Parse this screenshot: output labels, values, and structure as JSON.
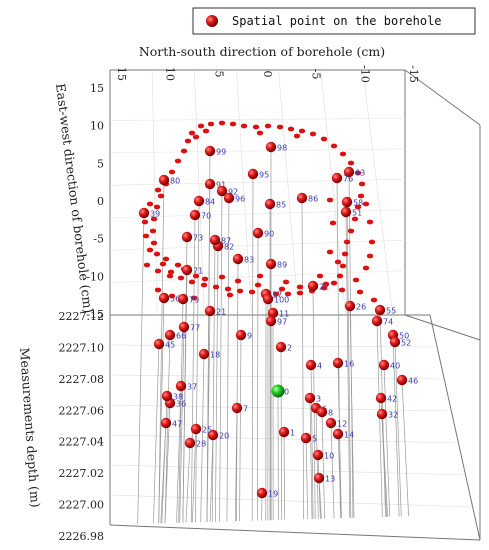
{
  "chart_data": {
    "type": "scatter",
    "legend": {
      "label": "Spatial point on the borehole",
      "placement": "top-right",
      "color": "#cc1111"
    },
    "axes": {
      "ns": {
        "title": "North-south direction of borehole (cm)",
        "ticks": [
          "15",
          "10",
          "5",
          "0",
          "-5",
          "-10",
          "-15"
        ],
        "range": [
          15,
          -15
        ]
      },
      "ew": {
        "title": "East-west direction of borehole (cm)",
        "ticks": [
          "15",
          "10",
          "5",
          "0",
          "-5",
          "-10",
          "-15"
        ],
        "range": [
          15,
          -15
        ]
      },
      "depth": {
        "title": "Measurements depth (m)",
        "ticks": [
          "2227.12",
          "2227.10",
          "2227.08",
          "2227.06",
          "2227.04",
          "2227.02",
          "2227.00",
          "2226.98"
        ],
        "range": [
          2226.98,
          2227.12
        ]
      }
    },
    "colors": {
      "point": "#cc1111",
      "highlight": "#22bb22",
      "label": "#3a3ab0",
      "guide": "#888888"
    },
    "labeled_points": [
      {
        "label": "0",
        "highlight": true
      },
      {
        "label": "1"
      },
      {
        "label": "2"
      },
      {
        "label": "3"
      },
      {
        "label": "4"
      },
      {
        "label": "5"
      },
      {
        "label": "6"
      },
      {
        "label": "7"
      },
      {
        "label": "8"
      },
      {
        "label": "9"
      },
      {
        "label": "10"
      },
      {
        "label": "11"
      },
      {
        "label": "12"
      },
      {
        "label": "13"
      },
      {
        "label": "14"
      },
      {
        "label": "16"
      },
      {
        "label": "17"
      },
      {
        "label": "18"
      },
      {
        "label": "19"
      },
      {
        "label": "20"
      },
      {
        "label": "21"
      },
      {
        "label": "22"
      },
      {
        "label": "25"
      },
      {
        "label": "26"
      },
      {
        "label": "28"
      },
      {
        "label": "32"
      },
      {
        "label": "36"
      },
      {
        "label": "37"
      },
      {
        "label": "38"
      },
      {
        "label": "39"
      },
      {
        "label": "40"
      },
      {
        "label": "42"
      },
      {
        "label": "45"
      },
      {
        "label": "46"
      },
      {
        "label": "47"
      },
      {
        "label": "50"
      },
      {
        "label": "51"
      },
      {
        "label": "52"
      },
      {
        "label": "55"
      },
      {
        "label": "56"
      },
      {
        "label": "58"
      },
      {
        "label": "63"
      },
      {
        "label": "66"
      },
      {
        "label": "70"
      },
      {
        "label": "71"
      },
      {
        "label": "73"
      },
      {
        "label": "74"
      },
      {
        "label": "76"
      },
      {
        "label": "77"
      },
      {
        "label": "79"
      },
      {
        "label": "80"
      },
      {
        "label": "82"
      },
      {
        "label": "83"
      },
      {
        "label": "84"
      },
      {
        "label": "85"
      },
      {
        "label": "86"
      },
      {
        "label": "87"
      },
      {
        "label": "89"
      },
      {
        "label": "90"
      },
      {
        "label": "91"
      },
      {
        "label": "92"
      },
      {
        "label": "95"
      },
      {
        "label": "96"
      },
      {
        "label": "97"
      },
      {
        "label": "98"
      },
      {
        "label": "99"
      },
      {
        "label": "100"
      }
    ]
  }
}
